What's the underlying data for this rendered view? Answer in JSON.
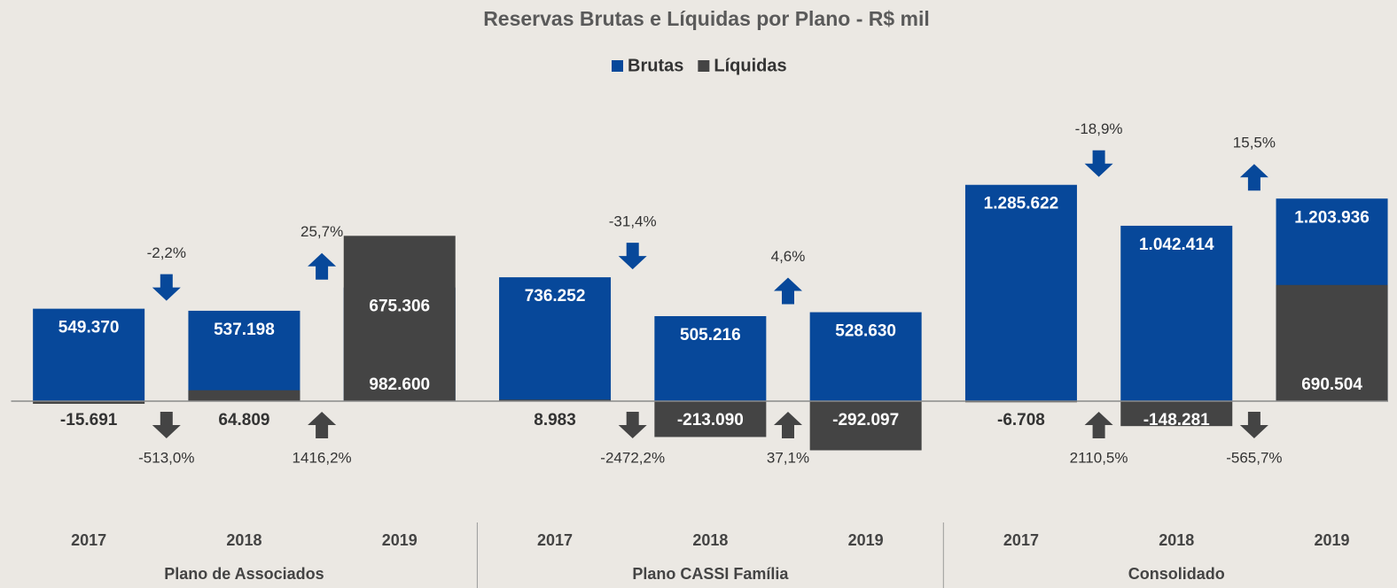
{
  "chart_data": {
    "type": "bar",
    "title": "Reservas Brutas e Líquidas por Plano - R$ mil",
    "categories": [
      "2017",
      "2018",
      "2019",
      "2017",
      "2018",
      "2019",
      "2017",
      "2018",
      "2019"
    ],
    "groups": [
      "Plano de Associados",
      "Plano CASSI Família",
      "Consolidado"
    ],
    "ylim": [
      -400000,
      1600000
    ],
    "legend": "top",
    "series": [
      {
        "name": "Brutas",
        "color": "#07489a",
        "values": [
          549370,
          537198,
          675306,
          736252,
          505216,
          528630,
          1285622,
          1042414,
          1203936
        ],
        "value_labels": [
          "549.370",
          "537.198",
          "675.306",
          "736.252",
          "505.216",
          "528.630",
          "1.285.622",
          "1.042.414",
          "1.203.936"
        ],
        "changes": [
          -2.2,
          25.7,
          -31.4,
          4.6,
          -18.9,
          15.5
        ],
        "change_labels": [
          "-2,2%",
          "25,7%",
          "-31,4%",
          "4,6%",
          "-18,9%",
          "15,5%"
        ]
      },
      {
        "name": "Líquidas",
        "color": "#444444",
        "values": [
          -15691,
          64809,
          982600,
          8983,
          -213090,
          -292097,
          -6708,
          -148281,
          690504
        ],
        "value_labels": [
          "-15.691",
          "64.809",
          "982.600",
          "8.983",
          "-213.090",
          "-292.097",
          "-6.708",
          "-148.281",
          "690.504"
        ],
        "changes": [
          -513.0,
          1416.2,
          -2472.2,
          37.1,
          2110.5,
          -565.7
        ],
        "change_labels": [
          "-513,0%",
          "1416,2%",
          "-2472,2%",
          "37,1%",
          "2110,5%",
          "-565,7%"
        ]
      }
    ]
  }
}
